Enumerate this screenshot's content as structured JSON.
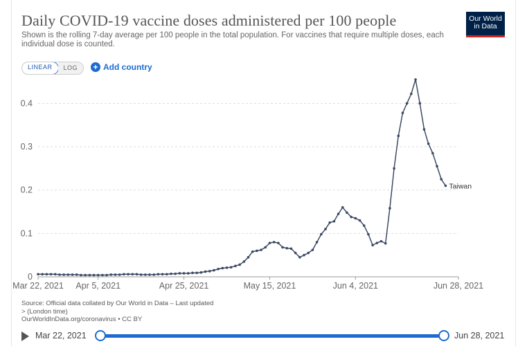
{
  "header": {
    "title": "Daily COVID-19 vaccine doses administered per 100 people",
    "subtitle": "Shown is the rolling 7-day average per 100 people in the total population. For vaccines that require multiple doses, each individual dose is counted.",
    "logo_line1": "Our World",
    "logo_line2": "in Data"
  },
  "controls": {
    "linear_label": "LINEAR",
    "log_label": "LOG",
    "add_country_label": "Add country"
  },
  "source": {
    "line1": "Source: Official data collated by Our World in Data – Last updated",
    "line2": "> (London time)",
    "line3": "OurWorldInData.org/coronavirus • CC BY"
  },
  "timeline": {
    "start_label": "Mar 22, 2021",
    "end_label": "Jun 28, 2021"
  },
  "colors": {
    "line": "#3c4964",
    "grid": "#dddddd",
    "accent": "#1d6bd1"
  },
  "chart_data": {
    "type": "line",
    "title": "Daily COVID-19 vaccine doses administered per 100 people",
    "xlabel": "",
    "ylabel": "",
    "ylim": [
      0,
      0.45
    ],
    "y_ticks": [
      0,
      0.1,
      0.2,
      0.3,
      0.4
    ],
    "y_tick_labels": [
      "0",
      "0.1",
      "0.2",
      "0.3",
      "0.4"
    ],
    "x_tick_labels": [
      "Mar 22, 2021",
      "Apr 5, 2021",
      "Apr 25, 2021",
      "May 15, 2021",
      "Jun 4, 2021",
      "Jun 28, 2021"
    ],
    "x_tick_days": [
      0,
      14,
      34,
      54,
      74,
      98
    ],
    "xlim_days": [
      0,
      98
    ],
    "grid": true,
    "series": [
      {
        "name": "Taiwan",
        "values": [
          0.006,
          0.006,
          0.006,
          0.006,
          0.006,
          0.005,
          0.005,
          0.005,
          0.005,
          0.005,
          0.004,
          0.004,
          0.004,
          0.004,
          0.004,
          0.004,
          0.004,
          0.005,
          0.005,
          0.005,
          0.006,
          0.006,
          0.006,
          0.006,
          0.005,
          0.005,
          0.005,
          0.005,
          0.006,
          0.006,
          0.006,
          0.007,
          0.007,
          0.008,
          0.008,
          0.008,
          0.009,
          0.009,
          0.01,
          0.012,
          0.013,
          0.015,
          0.018,
          0.02,
          0.021,
          0.022,
          0.025,
          0.028,
          0.035,
          0.045,
          0.058,
          0.06,
          0.062,
          0.068,
          0.078,
          0.08,
          0.078,
          0.068,
          0.066,
          0.065,
          0.055,
          0.045,
          0.05,
          0.055,
          0.062,
          0.08,
          0.098,
          0.11,
          0.125,
          0.128,
          0.145,
          0.16,
          0.148,
          0.138,
          0.135,
          0.13,
          0.118,
          0.098,
          0.073,
          0.078,
          0.082,
          0.077,
          0.158,
          0.25,
          0.325,
          0.378,
          0.4,
          0.422,
          0.455,
          0.4,
          0.34,
          0.307,
          0.285,
          0.255,
          0.225,
          0.21
        ]
      }
    ]
  }
}
